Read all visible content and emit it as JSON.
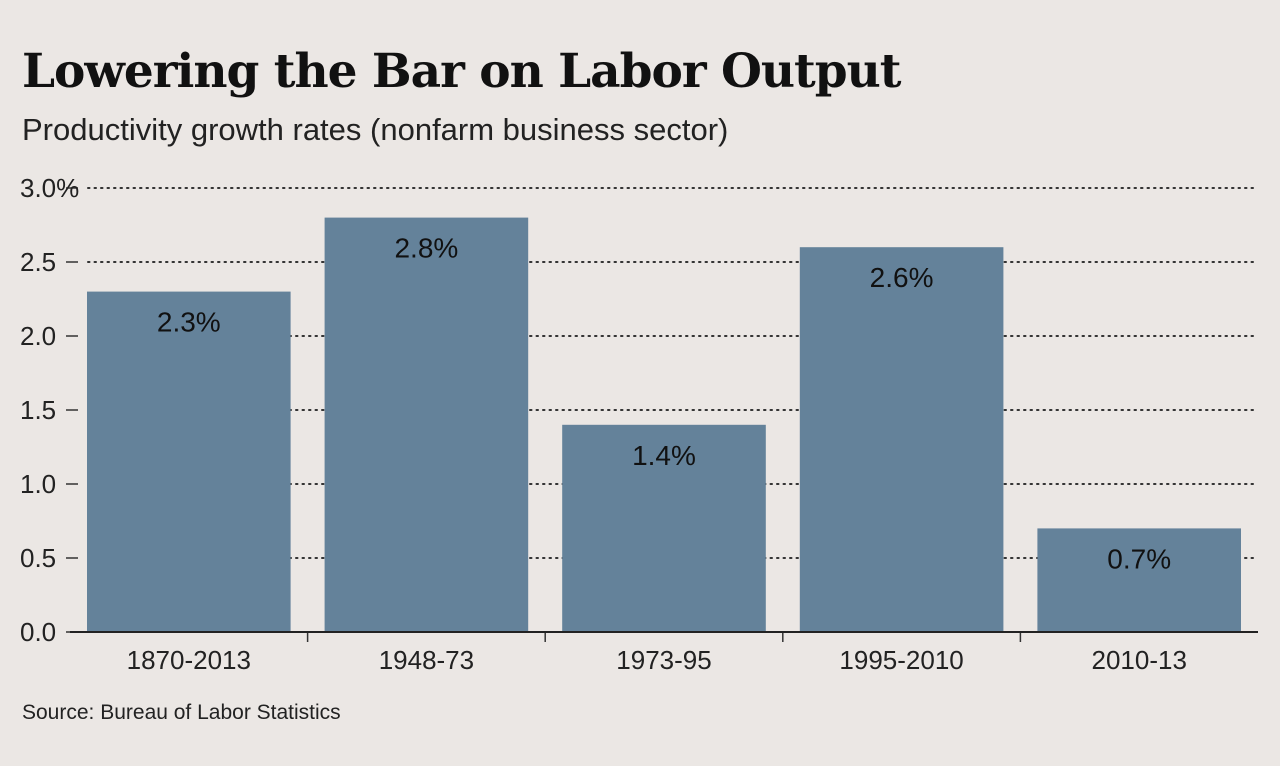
{
  "chart_data": {
    "type": "bar",
    "title": "Lowering the Bar on Labor Output",
    "subtitle": "Productivity growth rates (nonfarm business sector)",
    "source": "Source: Bureau of Labor Statistics",
    "categories": [
      "1870-2013",
      "1948-73",
      "1973-95",
      "1995-2010",
      "2010-13"
    ],
    "values": [
      2.3,
      2.8,
      1.4,
      2.6,
      0.7
    ],
    "value_labels": [
      "2.3%",
      "2.8%",
      "1.4%",
      "2.6%",
      "0.7%"
    ],
    "yticks": [
      "0.0",
      "0.5",
      "1.0",
      "1.5",
      "2.0",
      "2.5",
      "3.0%"
    ],
    "ylim": [
      0,
      3
    ],
    "grid": true,
    "bar_color": "#64829a"
  }
}
